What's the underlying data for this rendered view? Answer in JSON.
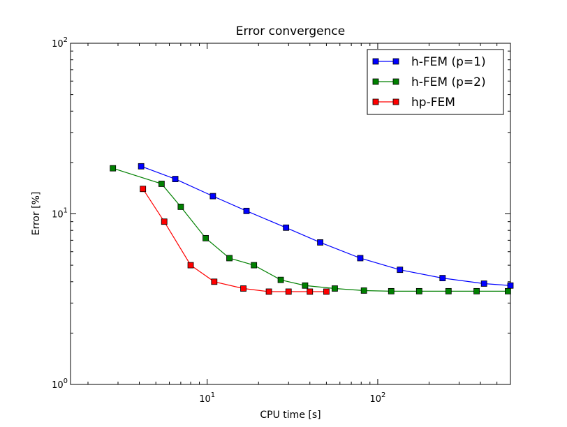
{
  "chart_data": {
    "type": "line",
    "title": "Error convergence",
    "xlabel": "CPU time [s]",
    "ylabel": "Error [%]",
    "xscale": "log",
    "yscale": "log",
    "xlim": [
      1.58,
      600
    ],
    "ylim": [
      1,
      100
    ],
    "grid": false,
    "legend_position": "top-right",
    "x_tick_labels": [
      {
        "value": 10,
        "base": "10",
        "exp": "1"
      },
      {
        "value": 100,
        "base": "10",
        "exp": "2"
      }
    ],
    "y_tick_labels": [
      {
        "value": 1,
        "base": "10",
        "exp": "0"
      },
      {
        "value": 10,
        "base": "10",
        "exp": "1"
      },
      {
        "value": 100,
        "base": "10",
        "exp": "2"
      }
    ],
    "series": [
      {
        "name": "h-FEM (p=1)",
        "color": "#0000ff",
        "marker": "square",
        "x": [
          4.1,
          6.5,
          10.8,
          17.0,
          29.0,
          46.0,
          79.0,
          135.0,
          240.0,
          420.0,
          600.0
        ],
        "y": [
          19.0,
          16.0,
          12.7,
          10.4,
          8.3,
          6.8,
          5.5,
          4.7,
          4.2,
          3.9,
          3.8
        ]
      },
      {
        "name": "h-FEM (p=2)",
        "color": "#008000",
        "marker": "square",
        "x": [
          2.8,
          5.4,
          7.0,
          9.8,
          13.5,
          18.8,
          27.0,
          37.5,
          56.0,
          83.0,
          120.0,
          175.0,
          260.0,
          380.0,
          580.0
        ],
        "y": [
          18.5,
          15.0,
          11.0,
          7.2,
          5.5,
          5.0,
          4.1,
          3.8,
          3.65,
          3.55,
          3.52,
          3.52,
          3.52,
          3.52,
          3.52
        ]
      },
      {
        "name": "hp-FEM",
        "color": "#ff0000",
        "marker": "square",
        "x": [
          4.2,
          5.6,
          8.0,
          11.0,
          16.3,
          23.0,
          30.0,
          40.0,
          50.0
        ],
        "y": [
          14.0,
          9.0,
          5.0,
          4.0,
          3.65,
          3.5,
          3.5,
          3.5,
          3.5
        ]
      }
    ]
  }
}
